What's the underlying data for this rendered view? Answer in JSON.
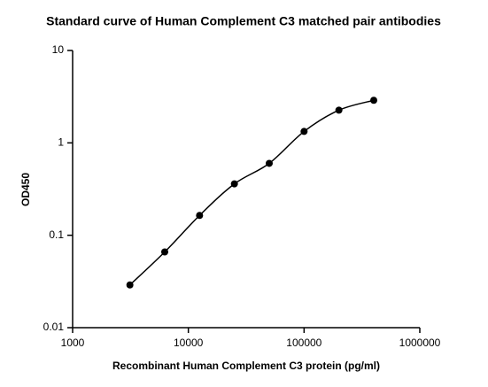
{
  "chart_data": {
    "type": "scatter",
    "title": "Standard curve of Human Complement C3 matched pair antibodies",
    "x_label": "Recombinant Human Complement C3 protein (pg/ml)",
    "y_label": "OD450",
    "x": [
      3125,
      6250,
      12500,
      25000,
      50000,
      100000,
      200000,
      400000
    ],
    "values": [
      0.029,
      0.066,
      0.164,
      0.36,
      0.6,
      1.33,
      2.26,
      2.89
    ],
    "color": "#000000",
    "xscale": "log",
    "yscale": "log",
    "xlim": [
      1000,
      1000000
    ],
    "xticks": [
      1000,
      10000,
      100000,
      1000000
    ],
    "ylim": [
      0.01,
      10
    ],
    "yticks": [
      0.01,
      0.1,
      1,
      10
    ],
    "fit_curve": true
  }
}
